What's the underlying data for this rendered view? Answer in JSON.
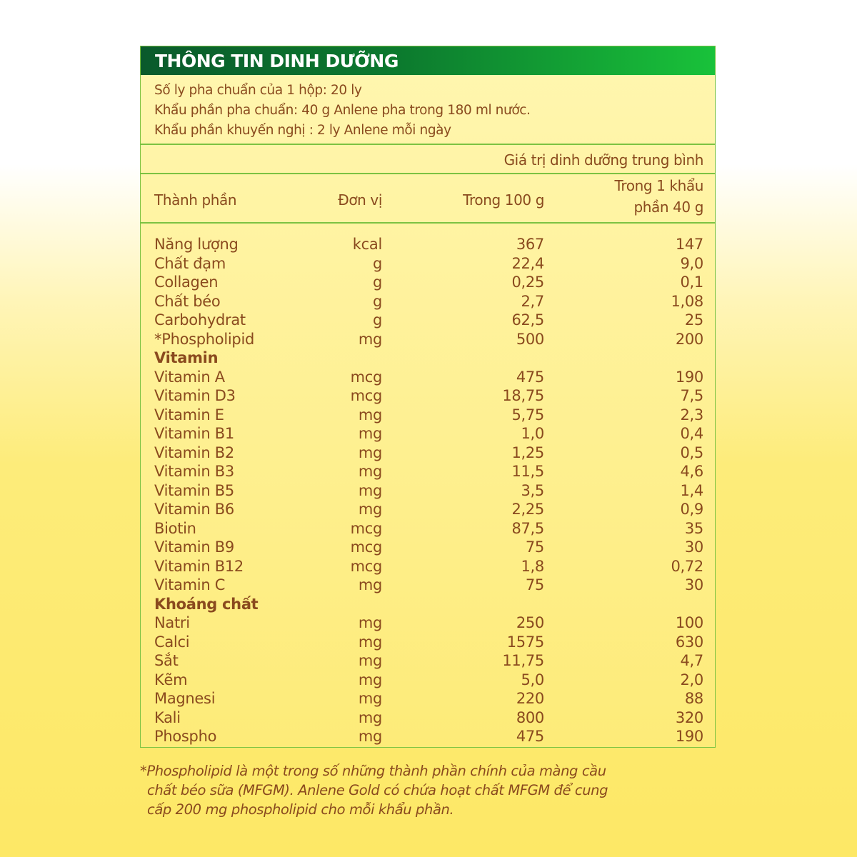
{
  "title": "THÔNG TIN DINH DƯỠNG",
  "info": [
    "Số ly pha chuẩn của 1 hộp: 20 ly",
    "Khẩu phần pha chuẩn: 40 g Anlene pha trong 180 ml nước.",
    "Khẩu phần khuyến nghị : 2 ly Anlene mỗi ngày"
  ],
  "avg_label": "Giá trị dinh dưỡng trung bình",
  "columns": {
    "name": "Thành phần",
    "unit": "Đơn vị",
    "per100": "Trong 100 g",
    "perServing1": "Trong 1 khẩu",
    "perServing2": "phần 40 g"
  },
  "rows": [
    [
      "Năng lượng",
      "kcal",
      "367",
      "147"
    ],
    [
      "Chất đạm",
      "g",
      "22,4",
      "9,0"
    ],
    [
      "Collagen",
      "g",
      "0,25",
      "0,1"
    ],
    [
      "Chất béo",
      "g",
      "2,7",
      "1,08"
    ],
    [
      "Carbohydrat",
      "g",
      "62,5",
      "25"
    ],
    [
      "*Phospholipid",
      "mg",
      "500",
      "200"
    ],
    [
      "Vitamin"
    ],
    [
      "Vitamin A",
      "mcg",
      "475",
      "190"
    ],
    [
      "Vitamin D3",
      "mcg",
      "18,75",
      "7,5"
    ],
    [
      "Vitamin E",
      "mg",
      "5,75",
      "2,3"
    ],
    [
      "Vitamin B1",
      "mg",
      "1,0",
      "0,4"
    ],
    [
      "Vitamin B2",
      "mg",
      "1,25",
      "0,5"
    ],
    [
      "Vitamin B3",
      "mg",
      "11,5",
      "4,6"
    ],
    [
      "Vitamin B5",
      "mg",
      "3,5",
      "1,4"
    ],
    [
      "Vitamin B6",
      "mg",
      "2,25",
      "0,9"
    ],
    [
      "Biotin",
      "mcg",
      "87,5",
      "35"
    ],
    [
      "Vitamin B9",
      "mcg",
      "75",
      "30"
    ],
    [
      "Vitamin B12",
      "mcg",
      "1,8",
      "0,72"
    ],
    [
      "Vitamin C",
      "mg",
      "75",
      "30"
    ],
    [
      "Khoáng chất"
    ],
    [
      "Natri",
      "mg",
      "250",
      "100"
    ],
    [
      "Calci",
      "mg",
      "1575",
      "630"
    ],
    [
      "Sắt",
      "mg",
      "11,75",
      "4,7"
    ],
    [
      "Kẽm",
      "mg",
      "5,0",
      "2,0"
    ],
    [
      "Magnesi",
      "mg",
      "220",
      "88"
    ],
    [
      "Kali",
      "mg",
      "800",
      "320"
    ],
    [
      "Phospho",
      "mg",
      "475",
      "190"
    ]
  ],
  "footnote": [
    "*Phospholipid là một trong số những thành phần chính của màng cầu",
    "chất béo sữa (MFGM). Anlene Gold  có chứa hoạt chất MFGM để cung",
    "cấp 200 mg  phospholipid cho mỗi khẩu phần."
  ],
  "colors": {
    "header_green_dark": "#0a5a2c",
    "header_green_light": "#19c23a",
    "text_brown": "#8a4a1e",
    "border_green": "#7cc242"
  }
}
